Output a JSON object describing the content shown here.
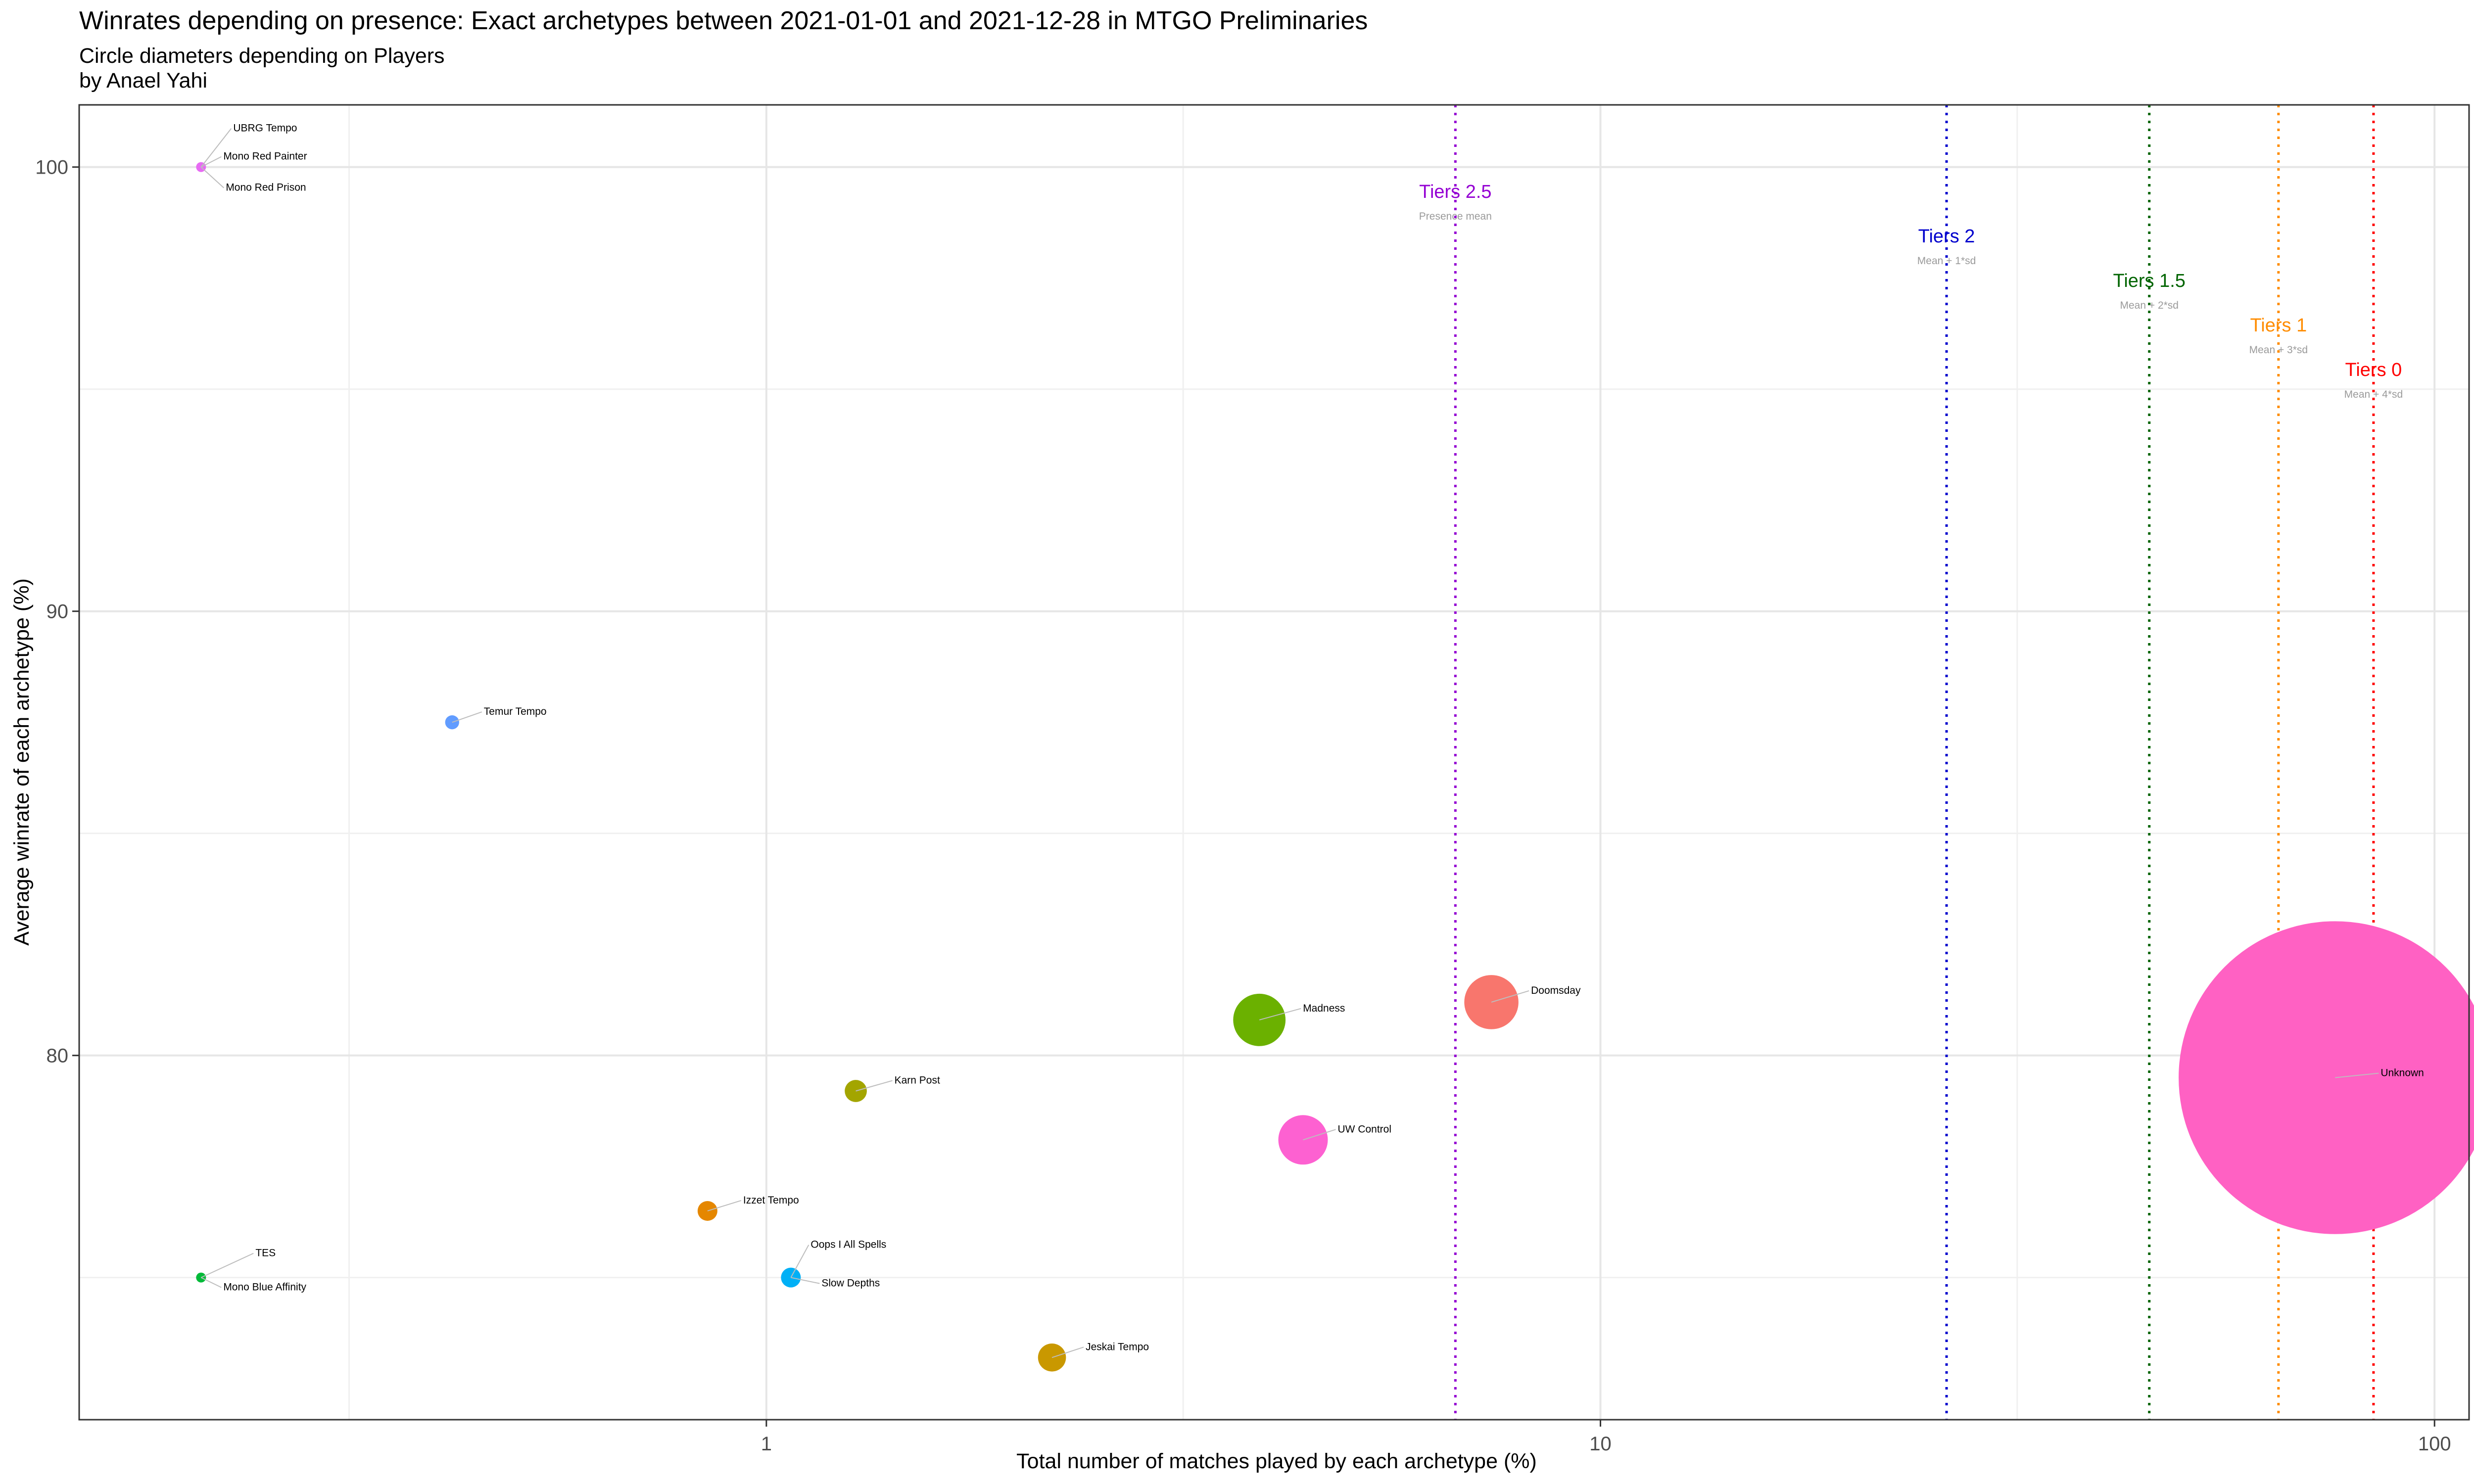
{
  "chart_data": {
    "type": "scatter",
    "title": "Winrates depending on presence: Exact archetypes  between 2021-01-01 and 2021-12-28 in MTGO Preliminaries",
    "subtitle": "Circle diameters depending on Players",
    "author": "by Anael Yahi",
    "xlabel": "Total number of matches played by each archetype (%)",
    "ylabel": "Average winrate of each archetype (%)",
    "x_scale": "log10",
    "xlim": [
      0.15,
      110
    ],
    "ylim": [
      71.8,
      101.4
    ],
    "x_ticks": [
      1,
      10,
      100
    ],
    "x_tick_labels": [
      "1",
      "10",
      "100"
    ],
    "y_ticks": [
      80,
      90,
      100
    ],
    "y_tick_labels": [
      "80",
      "90",
      "100"
    ],
    "grid": true,
    "points": [
      {
        "label": "UBRG Tempo",
        "x": 0.21,
        "y": 100,
        "size": 1,
        "color": "#E76BF3"
      },
      {
        "label": "Mono Red Painter",
        "x": 0.21,
        "y": 100,
        "size": 1,
        "color": "#E76BF3"
      },
      {
        "label": "Mono Red Prison",
        "x": 0.21,
        "y": 100,
        "size": 1,
        "color": "#E76BF3"
      },
      {
        "label": "Temur Tempo",
        "x": 0.42,
        "y": 87.5,
        "size": 2,
        "color": "#619CFF"
      },
      {
        "label": "TES",
        "x": 0.21,
        "y": 75,
        "size": 1,
        "color": "#00BA38"
      },
      {
        "label": "Mono Blue Affinity",
        "x": 0.21,
        "y": 75,
        "size": 1,
        "color": "#00BA38"
      },
      {
        "label": "Izzet Tempo",
        "x": 0.85,
        "y": 76.5,
        "size": 4,
        "color": "#E58700"
      },
      {
        "label": "Oops I  All   Spells",
        "x": 1.07,
        "y": 75,
        "size": 4,
        "color": "#00B0F6"
      },
      {
        "label": "Slow   Depths",
        "x": 1.07,
        "y": 75,
        "size": 4,
        "color": "#00B0F6"
      },
      {
        "label": "Karn   Post",
        "x": 1.28,
        "y": 79.2,
        "size": 5,
        "color": "#A3A500"
      },
      {
        "label": "Jeskai Tempo",
        "x": 2.2,
        "y": 73.2,
        "size": 8,
        "color": "#C99800"
      },
      {
        "label": "Madness",
        "x": 3.9,
        "y": 80.8,
        "size": 28,
        "color": "#6BB100"
      },
      {
        "label": "UW   Control",
        "x": 4.4,
        "y": 78.1,
        "size": 25,
        "color": "#FD61D1"
      },
      {
        "label": "Doomsday",
        "x": 7.4,
        "y": 81.2,
        "size": 30,
        "color": "#F8766D"
      },
      {
        "label": "Unknown",
        "x": 76,
        "y": 79.5,
        "size": 1000,
        "color": "#FF61C3"
      }
    ],
    "vlines": [
      {
        "label": "Tiers 2.5",
        "sub": "Presence mean",
        "x": 6.7,
        "color": "#9400D3"
      },
      {
        "label": "Tiers 2",
        "sub": "Mean + 1*sd",
        "x": 26,
        "color": "#0000CD"
      },
      {
        "label": "Tiers 1.5",
        "sub": "Mean + 2*sd",
        "x": 45.5,
        "color": "#006400"
      },
      {
        "label": "Tiers 1",
        "sub": "Mean + 3*sd",
        "x": 65,
        "color": "#FF8C00"
      },
      {
        "label": "Tiers 0",
        "sub": "Mean + 4*sd",
        "x": 84.5,
        "color": "#FF0000"
      }
    ]
  }
}
